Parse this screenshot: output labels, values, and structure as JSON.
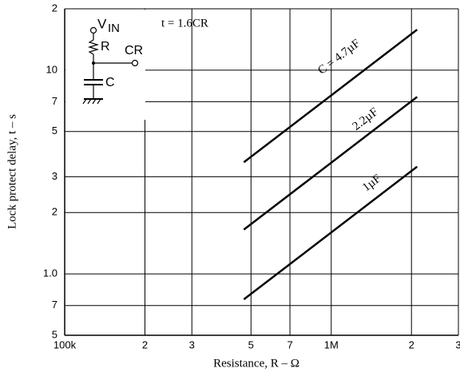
{
  "chart_data": {
    "type": "line",
    "x_label": "Resistance, R  –  Ω",
    "y_label": "Lock protect delay, t  –  s",
    "annotation": "t = 1.6CR",
    "log_x": true,
    "log_y": true,
    "grid": true,
    "xlim": [
      100000,
      3000000
    ],
    "ylim": [
      0.5,
      20
    ],
    "xticks": [
      {
        "value": 100000,
        "label": "100k"
      },
      {
        "value": 200000,
        "label": "2"
      },
      {
        "value": 300000,
        "label": "3"
      },
      {
        "value": 500000,
        "label": "5"
      },
      {
        "value": 700000,
        "label": "7"
      },
      {
        "value": 1000000,
        "label": "1M"
      },
      {
        "value": 2000000,
        "label": "2"
      },
      {
        "value": 3000000,
        "label": "3"
      }
    ],
    "yticks": [
      {
        "value": 0.5,
        "label": "5"
      },
      {
        "value": 0.7,
        "label": "7"
      },
      {
        "value": 1,
        "label": "1.0"
      },
      2,
      3,
      5,
      7,
      10,
      {
        "value": 20,
        "label": "2"
      }
    ],
    "series": [
      {
        "name": "C = 4.7µF",
        "color": "#000000",
        "x": [
          470000,
          2100000
        ],
        "values": [
          3.53,
          15.8
        ]
      },
      {
        "name": "2.2µF",
        "color": "#000000",
        "x": [
          470000,
          2100000
        ],
        "values": [
          1.65,
          7.39
        ]
      },
      {
        "name": "1µF",
        "color": "#000000",
        "x": [
          470000,
          2100000
        ],
        "values": [
          0.75,
          3.36
        ]
      }
    ],
    "schematic": {
      "vin": "V",
      "vin_sub": "IN",
      "r": "R",
      "cr": "CR",
      "c": "C"
    }
  }
}
